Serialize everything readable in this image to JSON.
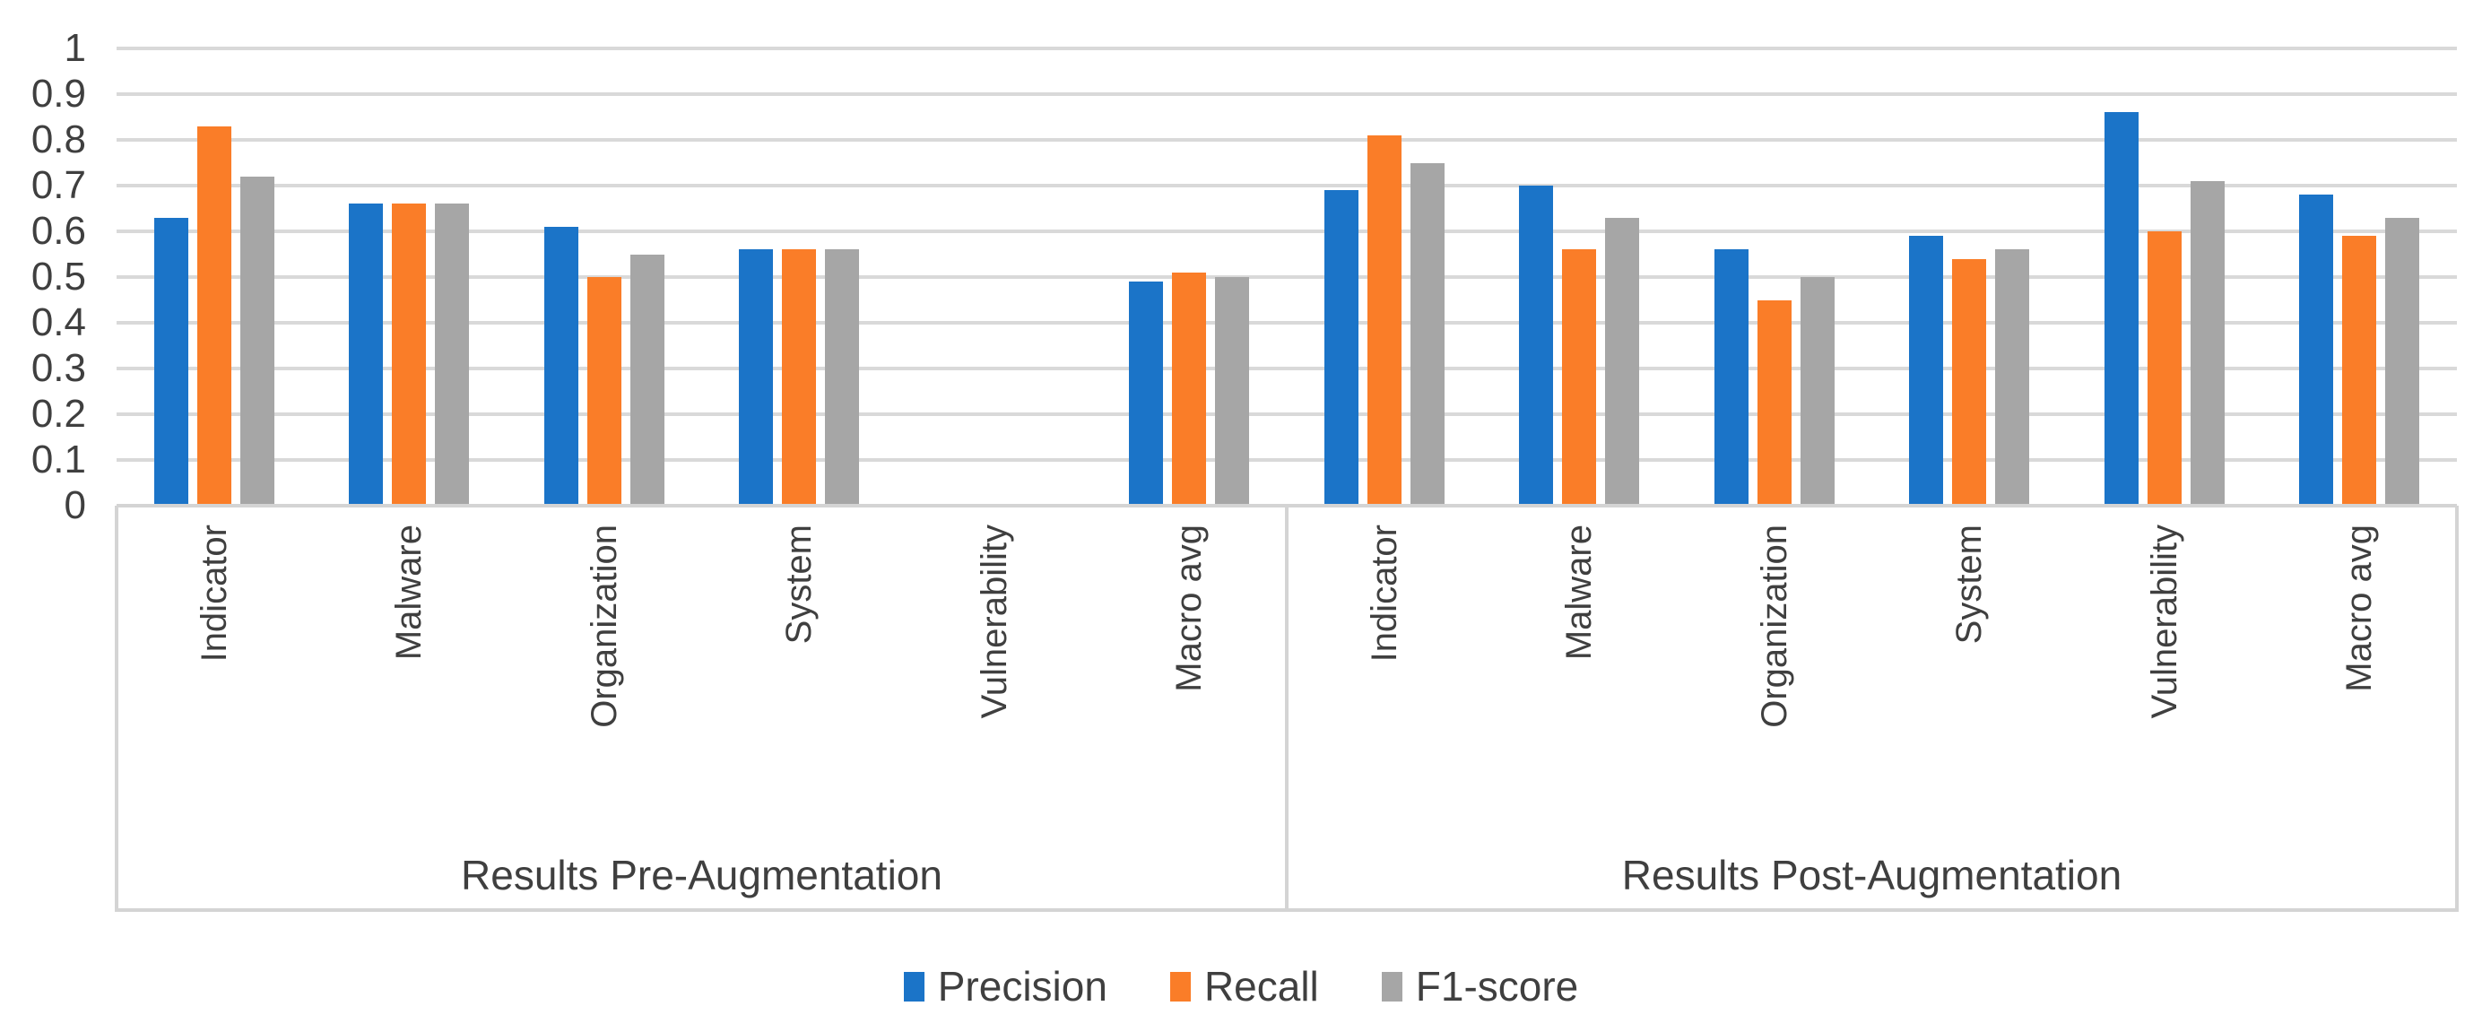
{
  "chart_data": {
    "type": "bar",
    "ylim": [
      0,
      1
    ],
    "ytick_labels": [
      "0",
      "0.1",
      "0.2",
      "0.3",
      "0.4",
      "0.5",
      "0.6",
      "0.7",
      "0.8",
      "0.9",
      "1"
    ],
    "grid": true,
    "legend_position": "bottom",
    "categories": [
      "Indicator",
      "Malware",
      "Organization",
      "System",
      "Vulnerability",
      "Macro avg"
    ],
    "groups": [
      {
        "label": "Results Pre-Augmentation",
        "series": [
          {
            "name": "Precision",
            "values": [
              0.63,
              0.66,
              0.61,
              0.56,
              0,
              0.49
            ]
          },
          {
            "name": "Recall",
            "values": [
              0.83,
              0.66,
              0.5,
              0.56,
              0,
              0.51
            ]
          },
          {
            "name": "F1-score",
            "values": [
              0.72,
              0.66,
              0.55,
              0.56,
              0,
              0.5
            ]
          }
        ]
      },
      {
        "label": "Results Post-Augmentation",
        "series": [
          {
            "name": "Precision",
            "values": [
              0.69,
              0.7,
              0.56,
              0.59,
              0.86,
              0.68
            ]
          },
          {
            "name": "Recall",
            "values": [
              0.81,
              0.56,
              0.45,
              0.54,
              0.6,
              0.59
            ]
          },
          {
            "name": "F1-score",
            "values": [
              0.75,
              0.63,
              0.5,
              0.56,
              0.71,
              0.63
            ]
          }
        ]
      }
    ],
    "legend": [
      {
        "label": "Precision",
        "color": "#1B74C8"
      },
      {
        "label": "Recall",
        "color": "#FA7D28"
      },
      {
        "label": "F1-score",
        "color": "#A6A6A6"
      }
    ],
    "colors": {
      "gridline": "#D9D9D9",
      "axis_box": "#D4D4D4",
      "text": "#3F3F3F",
      "background": "#FFFFFF"
    }
  }
}
